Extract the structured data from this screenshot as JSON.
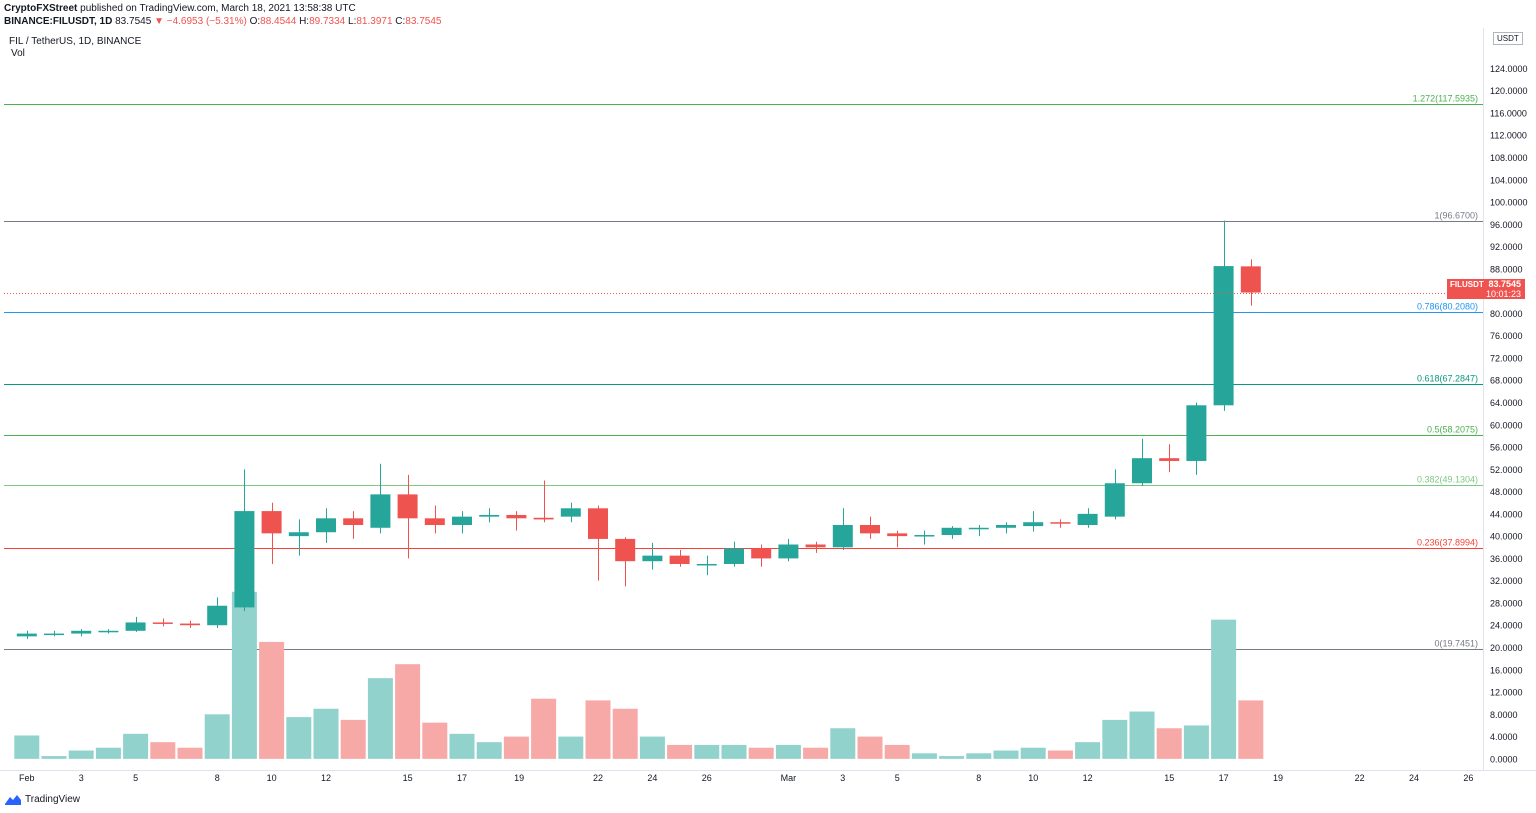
{
  "header": {
    "publisher": "CryptoFXStreet",
    "published_text": "published on TradingView.com, March 18, 2021 13:58:38 UTC",
    "symbol_line_symbol": "BINANCE:FILUSDT, 1D",
    "last": "83.7545",
    "change": "▼ −4.6953 (−5.31%)",
    "open_label": "O:",
    "open": "88.4544",
    "high_label": "H:",
    "high": "89.7334",
    "low_label": "L:",
    "low": "81.3971",
    "close_label": "C:",
    "close": "83.7545",
    "legend_title": "FIL / TetherUS, 1D, BINANCE",
    "volume_label": "Vol"
  },
  "price_badge": {
    "symbol": "FILUSDT",
    "price": "83.7545",
    "countdown": "10:01:23"
  },
  "currency_label": "USDT",
  "footer": {
    "brand": "TradingView"
  },
  "colors": {
    "up": "#26a69a",
    "down": "#ef5350",
    "vol_up": "#92d2cc",
    "vol_down": "#f7a9a7"
  },
  "chart_data": {
    "type": "candlestick",
    "title": "FIL / TetherUS, 1D, BINANCE",
    "ylim": [
      -2.0,
      130.0
    ],
    "price_axis_ticks": [
      "124.0000",
      "120.0000",
      "116.0000",
      "112.0000",
      "108.0000",
      "104.0000",
      "100.0000",
      "96.0000",
      "92.0000",
      "88.0000",
      "84.0000",
      "80.0000",
      "76.0000",
      "72.0000",
      "68.0000",
      "64.0000",
      "60.0000",
      "56.0000",
      "52.0000",
      "48.0000",
      "44.0000",
      "40.0000",
      "36.0000",
      "32.0000",
      "28.0000",
      "24.0000",
      "20.0000",
      "16.0000",
      "12.0000",
      "8.0000",
      "4.0000",
      "0.0000"
    ],
    "time_axis_labels": [
      {
        "label": "Feb",
        "index": 0.5
      },
      {
        "label": "3",
        "index": 2.5
      },
      {
        "label": "5",
        "index": 4.5
      },
      {
        "label": "8",
        "index": 7.5
      },
      {
        "label": "10",
        "index": 9.5
      },
      {
        "label": "12",
        "index": 11.5
      },
      {
        "label": "15",
        "index": 14.5
      },
      {
        "label": "17",
        "index": 16.5
      },
      {
        "label": "19",
        "index": 18.6
      },
      {
        "label": "22",
        "index": 21.5
      },
      {
        "label": "24",
        "index": 23.5
      },
      {
        "label": "26",
        "index": 25.5
      },
      {
        "label": "Mar",
        "index": 28.5
      },
      {
        "label": "3",
        "index": 30.5
      },
      {
        "label": "5",
        "index": 32.5
      },
      {
        "label": "8",
        "index": 35.5
      },
      {
        "label": "10",
        "index": 37.5
      },
      {
        "label": "12",
        "index": 39.5
      },
      {
        "label": "15",
        "index": 42.5
      },
      {
        "label": "17",
        "index": 44.5
      },
      {
        "label": "19",
        "index": 46.5
      },
      {
        "label": "22",
        "index": 49.5
      },
      {
        "label": "24",
        "index": 51.5
      },
      {
        "label": "26",
        "index": 53.5
      }
    ],
    "candles": [
      {
        "o": 22.0,
        "h": 23.0,
        "l": 21.5,
        "c": 22.5,
        "v": 4.2
      },
      {
        "o": 22.5,
        "h": 23.0,
        "l": 22.0,
        "c": 22.5,
        "v": 0.5
      },
      {
        "o": 22.5,
        "h": 23.3,
        "l": 22.0,
        "c": 23.0,
        "v": 1.5
      },
      {
        "o": 23.0,
        "h": 23.3,
        "l": 22.5,
        "c": 23.0,
        "v": 2.0
      },
      {
        "o": 23.0,
        "h": 25.5,
        "l": 22.8,
        "c": 24.5,
        "v": 4.5
      },
      {
        "o": 24.5,
        "h": 25.2,
        "l": 23.8,
        "c": 24.3,
        "v": 3.0
      },
      {
        "o": 24.3,
        "h": 24.8,
        "l": 23.5,
        "c": 24.0,
        "v": 2.0
      },
      {
        "o": 24.0,
        "h": 29.0,
        "l": 23.5,
        "c": 27.5,
        "v": 8.0
      },
      {
        "o": 27.2,
        "h": 52.0,
        "l": 26.5,
        "c": 44.5,
        "v": 30.0
      },
      {
        "o": 44.5,
        "h": 46.0,
        "l": 35.0,
        "c": 40.5,
        "v": 21.0
      },
      {
        "o": 40.0,
        "h": 43.0,
        "l": 36.5,
        "c": 40.7,
        "v": 7.5
      },
      {
        "o": 40.7,
        "h": 45.0,
        "l": 38.8,
        "c": 43.2,
        "v": 9.0
      },
      {
        "o": 43.2,
        "h": 44.5,
        "l": 39.5,
        "c": 42.0,
        "v": 7.0
      },
      {
        "o": 41.5,
        "h": 53.0,
        "l": 40.5,
        "c": 47.5,
        "v": 14.5
      },
      {
        "o": 47.5,
        "h": 51.0,
        "l": 36.0,
        "c": 43.2,
        "v": 17.0
      },
      {
        "o": 43.2,
        "h": 45.5,
        "l": 40.5,
        "c": 42.0,
        "v": 6.5
      },
      {
        "o": 42.0,
        "h": 44.5,
        "l": 40.5,
        "c": 43.5,
        "v": 4.5
      },
      {
        "o": 43.5,
        "h": 45.0,
        "l": 42.5,
        "c": 43.8,
        "v": 3.0
      },
      {
        "o": 43.8,
        "h": 44.5,
        "l": 41.0,
        "c": 43.2,
        "v": 4.0
      },
      {
        "o": 43.3,
        "h": 50.0,
        "l": 42.5,
        "c": 43.0,
        "v": 10.8
      },
      {
        "o": 43.5,
        "h": 46.0,
        "l": 42.5,
        "c": 45.0,
        "v": 4.0
      },
      {
        "o": 45.0,
        "h": 45.5,
        "l": 32.0,
        "c": 39.5,
        "v": 10.5
      },
      {
        "o": 39.5,
        "h": 39.8,
        "l": 31.0,
        "c": 35.5,
        "v": 9.0
      },
      {
        "o": 35.5,
        "h": 38.8,
        "l": 34.0,
        "c": 36.5,
        "v": 4.0
      },
      {
        "o": 36.5,
        "h": 37.5,
        "l": 34.5,
        "c": 35.0,
        "v": 2.5
      },
      {
        "o": 35.0,
        "h": 36.5,
        "l": 33.0,
        "c": 35.0,
        "v": 2.5
      },
      {
        "o": 35.0,
        "h": 39.0,
        "l": 34.5,
        "c": 37.8,
        "v": 2.5
      },
      {
        "o": 37.8,
        "h": 38.5,
        "l": 34.5,
        "c": 36.0,
        "v": 2.0
      },
      {
        "o": 36.0,
        "h": 39.5,
        "l": 35.5,
        "c": 38.5,
        "v": 2.5
      },
      {
        "o": 38.5,
        "h": 39.0,
        "l": 37.0,
        "c": 38.0,
        "v": 2.0
      },
      {
        "o": 38.0,
        "h": 45.0,
        "l": 37.5,
        "c": 42.0,
        "v": 5.5
      },
      {
        "o": 42.0,
        "h": 43.5,
        "l": 39.5,
        "c": 40.5,
        "v": 4.0
      },
      {
        "o": 40.5,
        "h": 41.0,
        "l": 38.0,
        "c": 40.0,
        "v": 2.5
      },
      {
        "o": 40.0,
        "h": 41.0,
        "l": 38.5,
        "c": 40.2,
        "v": 1.0
      },
      {
        "o": 40.2,
        "h": 41.8,
        "l": 39.5,
        "c": 41.5,
        "v": 0.5
      },
      {
        "o": 41.5,
        "h": 42.0,
        "l": 40.0,
        "c": 41.5,
        "v": 1.0
      },
      {
        "o": 41.5,
        "h": 42.5,
        "l": 40.5,
        "c": 42.0,
        "v": 1.5
      },
      {
        "o": 41.8,
        "h": 44.5,
        "l": 40.8,
        "c": 42.5,
        "v": 2.0
      },
      {
        "o": 42.5,
        "h": 43.0,
        "l": 41.5,
        "c": 42.3,
        "v": 1.5
      },
      {
        "o": 42.0,
        "h": 45.0,
        "l": 41.5,
        "c": 44.0,
        "v": 3.0
      },
      {
        "o": 43.5,
        "h": 52.0,
        "l": 43.0,
        "c": 49.5,
        "v": 7.0
      },
      {
        "o": 49.5,
        "h": 57.5,
        "l": 49.0,
        "c": 54.0,
        "v": 8.5
      },
      {
        "o": 54.0,
        "h": 56.5,
        "l": 51.5,
        "c": 53.5,
        "v": 5.5
      },
      {
        "o": 53.5,
        "h": 64.0,
        "l": 51.0,
        "c": 63.5,
        "v": 6.0
      },
      {
        "o": 63.5,
        "h": 96.67,
        "l": 62.5,
        "c": 88.5,
        "v": 25.0
      },
      {
        "o": 88.45,
        "h": 89.73,
        "l": 81.4,
        "c": 83.75,
        "v": 10.5
      }
    ],
    "volume_axis_mapping": "volume plotted on shared price scale",
    "fib_levels": [
      {
        "label": "1.272(117.5935)",
        "value": 117.5935,
        "color": "#4caf50"
      },
      {
        "label": "1(96.6700)",
        "value": 96.67,
        "color": "#787b86"
      },
      {
        "label": "0.786(80.2080)",
        "value": 80.208,
        "color": "#2196f3"
      },
      {
        "label": "0.618(67.2847)",
        "value": 67.2847,
        "color": "#089981"
      },
      {
        "label": "0.5(58.2075)",
        "value": 58.2075,
        "color": "#4caf50"
      },
      {
        "label": "0.382(49.1304)",
        "value": 49.1304,
        "color": "#81c784"
      },
      {
        "label": "0.236(37.8994)",
        "value": 37.8994,
        "color": "#f44336"
      },
      {
        "label": "0(19.7451)",
        "value": 19.7451,
        "color": "#787b86"
      }
    ],
    "current_price": 83.7545,
    "total_slots": 55
  }
}
